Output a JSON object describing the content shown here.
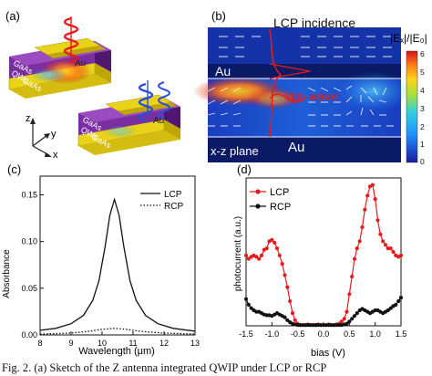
{
  "caption": "Fig. 2.  (a) Sketch of the Z antenna integrated QWIP under LCP or RCP",
  "panel_a": {
    "label": "(a)",
    "layers": [
      "Au",
      "GaAs",
      "QWs",
      "GaAs",
      "Au"
    ],
    "axes": [
      "z",
      "y",
      "x"
    ],
    "colors": {
      "gold": "#e8d21a",
      "goldDark": "#bfa600",
      "purple": "#7a2fa0",
      "purpleDark": "#4e1870",
      "spiralRed": "#e41c1c",
      "spiralBlue": "#2a4fd6"
    }
  },
  "panel_b": {
    "label": "(b)",
    "title": "LCP incidence",
    "spp_label": "spp wave",
    "plane_label": "x-z plane",
    "au_top": "Au",
    "au_bottom": "Au",
    "colorbar_title": "|Eₓ|/|E₀|",
    "colorbar_ticks": [
      "6",
      "5",
      "4",
      "3",
      "2",
      "1",
      "0"
    ]
  },
  "chart_data": [
    {
      "type": "line",
      "panel": "(c)",
      "xlabel": "Wavelength (μm)",
      "ylabel": "Absorbance",
      "xlim": [
        8,
        13
      ],
      "ylim": [
        0.0,
        0.17
      ],
      "xticks": [
        "8",
        "9",
        "10",
        "11",
        "12",
        "13"
      ],
      "yticks": [
        "0.00",
        "0.05",
        "0.10",
        "0.15"
      ],
      "legend": "top-right",
      "series": [
        {
          "name": "LCP",
          "style": "solid",
          "x": [
            8.0,
            8.5,
            9.0,
            9.4,
            9.7,
            9.9,
            10.1,
            10.25,
            10.4,
            10.55,
            10.7,
            10.9,
            11.1,
            11.4,
            11.8,
            12.3,
            13.0
          ],
          "y": [
            0.005,
            0.007,
            0.012,
            0.021,
            0.037,
            0.058,
            0.095,
            0.128,
            0.145,
            0.128,
            0.095,
            0.058,
            0.037,
            0.021,
            0.012,
            0.007,
            0.004
          ]
        },
        {
          "name": "RCP",
          "style": "dotted",
          "x": [
            8.0,
            9.0,
            9.6,
            10.0,
            10.4,
            10.8,
            11.2,
            12.0,
            13.0
          ],
          "y": [
            0.001,
            0.002,
            0.004,
            0.006,
            0.007,
            0.006,
            0.004,
            0.002,
            0.001
          ]
        }
      ]
    },
    {
      "type": "line",
      "panel": "(d)",
      "xlabel": "bias (V)",
      "ylabel": "photocurrent (a.u.)",
      "xlim": [
        -1.5,
        1.5
      ],
      "ylim": [
        0,
        210
      ],
      "xticks": [
        "-1.5",
        "-1.0",
        "-0.5",
        "0.0",
        "0.5",
        "1.0",
        "1.5"
      ],
      "legend": "top-left",
      "series": [
        {
          "name": "LCP",
          "color": "#e41c1c",
          "x": [
            -1.5,
            -1.45,
            -1.4,
            -1.35,
            -1.3,
            -1.25,
            -1.2,
            -1.15,
            -1.1,
            -1.05,
            -1.0,
            -0.95,
            -0.9,
            -0.85,
            -0.8,
            -0.75,
            -0.7,
            -0.65,
            -0.6,
            -0.55,
            -0.5,
            -0.45,
            -0.4,
            -0.35,
            -0.3,
            -0.25,
            -0.2,
            -0.15,
            -0.1,
            -0.05,
            0.0,
            0.05,
            0.1,
            0.15,
            0.2,
            0.25,
            0.3,
            0.35,
            0.4,
            0.45,
            0.5,
            0.55,
            0.6,
            0.65,
            0.7,
            0.75,
            0.8,
            0.85,
            0.9,
            0.95,
            1.0,
            1.05,
            1.1,
            1.15,
            1.2,
            1.25,
            1.3,
            1.35,
            1.4,
            1.45,
            1.5
          ],
          "y": [
            100,
            95,
            98,
            100,
            98,
            95,
            100,
            108,
            110,
            120,
            122,
            118,
            110,
            100,
            88,
            72,
            55,
            35,
            18,
            8,
            3,
            1,
            1,
            1,
            2,
            1,
            1,
            1,
            2,
            1,
            1,
            1,
            2,
            1,
            1,
            2,
            3,
            6,
            10,
            20,
            45,
            70,
            95,
            110,
            120,
            140,
            165,
            185,
            198,
            200,
            180,
            150,
            130,
            120,
            115,
            110,
            110,
            105,
            100,
            98,
            100
          ]
        },
        {
          "name": "RCP",
          "color": "#111111",
          "x": [
            -1.5,
            -1.45,
            -1.4,
            -1.35,
            -1.3,
            -1.25,
            -1.2,
            -1.15,
            -1.1,
            -1.05,
            -1.0,
            -0.95,
            -0.9,
            -0.85,
            -0.8,
            -0.75,
            -0.7,
            -0.65,
            -0.6,
            -0.55,
            -0.5,
            -0.45,
            -0.4,
            -0.35,
            -0.3,
            -0.25,
            -0.2,
            -0.15,
            -0.1,
            -0.05,
            0.0,
            0.05,
            0.1,
            0.15,
            0.2,
            0.25,
            0.3,
            0.35,
            0.4,
            0.45,
            0.5,
            0.55,
            0.6,
            0.65,
            0.7,
            0.75,
            0.8,
            0.85,
            0.9,
            0.95,
            1.0,
            1.05,
            1.1,
            1.15,
            1.2,
            1.25,
            1.3,
            1.35,
            1.4,
            1.45,
            1.5
          ],
          "y": [
            38,
            30,
            25,
            22,
            20,
            20,
            18,
            16,
            15,
            15,
            14,
            16,
            18,
            16,
            14,
            12,
            8,
            5,
            3,
            2,
            1,
            1,
            1,
            1,
            1,
            1,
            1,
            1,
            1,
            1,
            1,
            1,
            1,
            1,
            1,
            1,
            1,
            1,
            2,
            3,
            6,
            10,
            14,
            18,
            22,
            24,
            22,
            20,
            18,
            20,
            22,
            22,
            20,
            18,
            20,
            22,
            25,
            28,
            30,
            35,
            40
          ]
        }
      ]
    }
  ]
}
